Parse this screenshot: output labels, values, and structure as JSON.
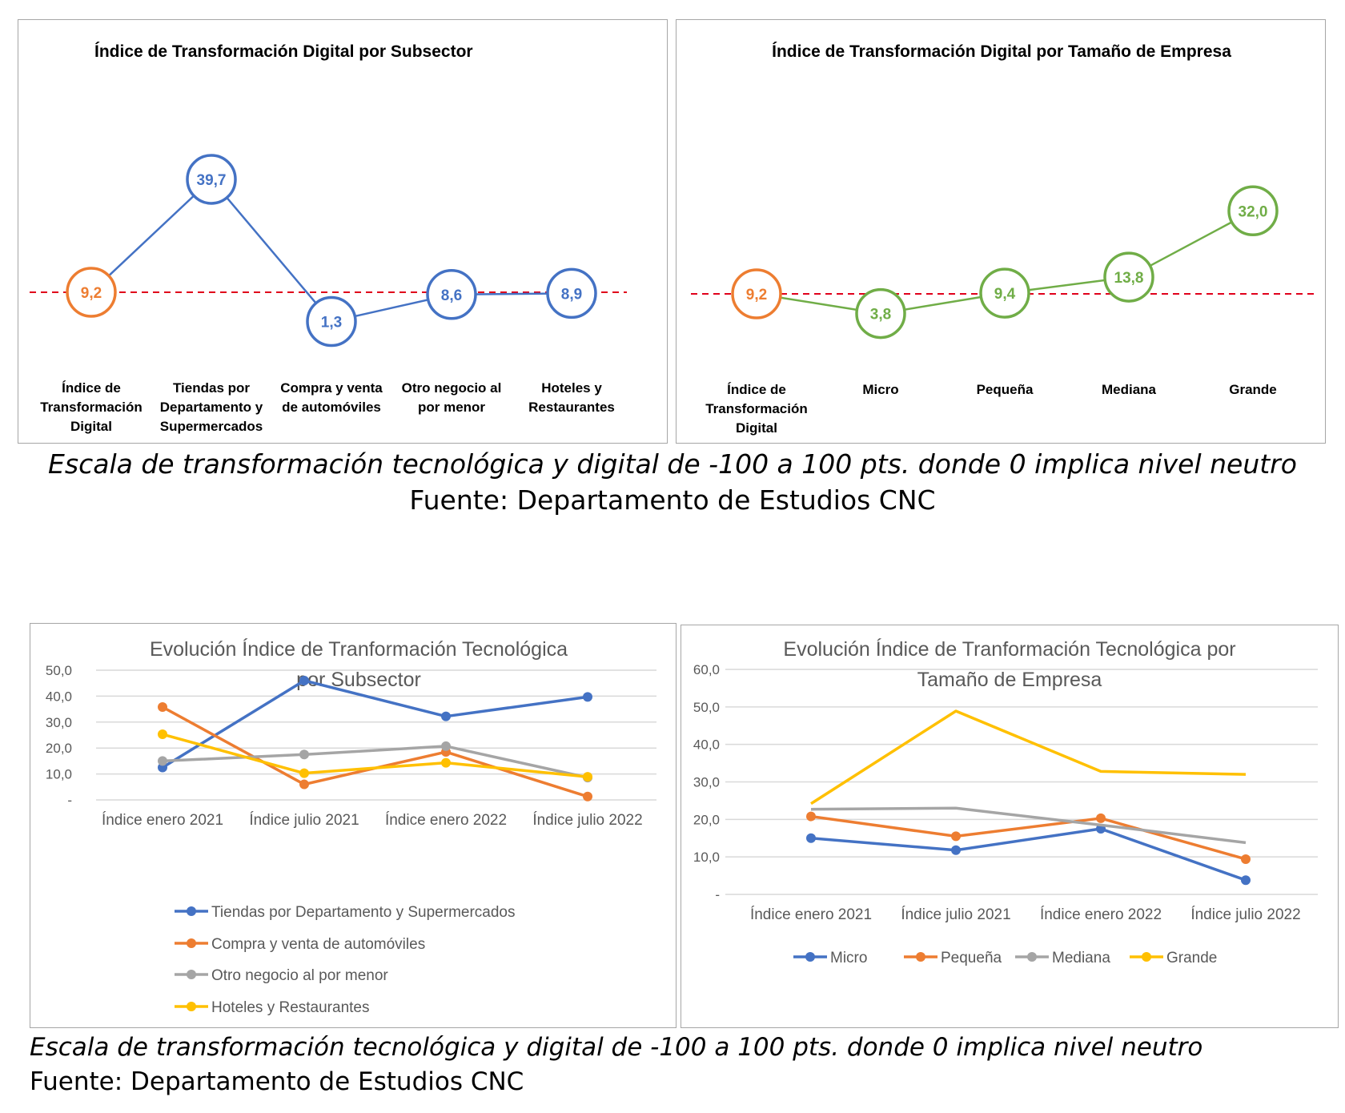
{
  "footnotes": {
    "top_scale": "Escala de transformación tecnológica y digital de -100 a 100 pts. donde 0 implica nivel neutro",
    "top_source": "Fuente: Departamento de Estudios CNC",
    "bottom_scale": "Escala de transformación tecnológica y digital de -100 a 100 pts. donde 0 implica nivel neutro",
    "bottom_source": "Fuente: Departamento de Estudios CNC"
  },
  "colors": {
    "blue": "#4472C4",
    "orange": "#ED7D31",
    "gray": "#A5A5A5",
    "yellow": "#FFC000",
    "green": "#70AD47",
    "ref_line": "#E0001B",
    "grid": "#D9D9D9",
    "axis_text": "#595959"
  },
  "chart_data": [
    {
      "type": "line",
      "title": "Índice de Transformación Digital por Subsector",
      "categories": [
        "Índice de Transformación Digital",
        "Tiendas por Departamento y Supermercados",
        "Compra y venta de automóviles",
        "Otro negocio al por menor",
        "Hoteles y Restaurantes"
      ],
      "category_lines": [
        [
          "Índice de",
          "Transformación",
          "Digital"
        ],
        [
          "Tiendas por",
          "Departamento y",
          "Supermercados"
        ],
        [
          "Compra y venta",
          "de automóviles"
        ],
        [
          "Otro negocio al",
          "por menor"
        ],
        [
          "Hoteles y",
          "Restaurantes"
        ]
      ],
      "values": [
        9.2,
        39.7,
        1.3,
        8.6,
        8.9
      ],
      "labels": [
        "9,2",
        "39,7",
        "1,3",
        "8,6",
        "8,9"
      ],
      "reference_value": 9.2,
      "marker_colors": [
        "#ED7D31",
        "#4472C4",
        "#4472C4",
        "#4472C4",
        "#4472C4"
      ],
      "line_color": "#4472C4"
    },
    {
      "type": "line",
      "title": "Índice de Transformación Digital por Tamaño de Empresa",
      "categories": [
        "Índice de Transformación Digital",
        "Micro",
        "Pequeña",
        "Mediana",
        "Grande"
      ],
      "category_lines": [
        [
          "Índice de",
          "Transformación",
          "Digital"
        ],
        [
          "Micro"
        ],
        [
          "Pequeña"
        ],
        [
          "Mediana"
        ],
        [
          "Grande"
        ]
      ],
      "values": [
        9.2,
        3.8,
        9.4,
        13.8,
        32.0
      ],
      "labels": [
        "9,2",
        "3,8",
        "9,4",
        "13,8",
        "32,0"
      ],
      "reference_value": 9.2,
      "marker_colors": [
        "#ED7D31",
        "#70AD47",
        "#70AD47",
        "#70AD47",
        "#70AD47"
      ],
      "line_color": "#70AD47"
    },
    {
      "type": "line",
      "title_lines": [
        "Evolución Índice de Tranformación Tecnológica",
        "por Subsector"
      ],
      "categories": [
        "Índice enero 2021",
        "Índice julio 2021",
        "Índice enero 2022",
        "Índice julio 2022"
      ],
      "ylim": [
        0,
        50
      ],
      "yticks": [
        0,
        10,
        20,
        30,
        40,
        50
      ],
      "ytick_labels": [
        "-",
        "10,0",
        "20,0",
        "30,0",
        "40,0",
        "50,0"
      ],
      "grid": true,
      "legend_position": "bottom",
      "markers": true,
      "series": [
        {
          "name": "Tiendas por Departamento y Supermercados",
          "color": "#4472C4",
          "values": [
            12.5,
            46.0,
            32.2,
            39.7
          ]
        },
        {
          "name": "Compra y venta de automóviles",
          "color": "#ED7D31",
          "values": [
            35.8,
            6.0,
            18.5,
            1.3
          ]
        },
        {
          "name": "Otro negocio al por menor",
          "color": "#A5A5A5",
          "values": [
            15.0,
            17.5,
            20.7,
            8.6
          ]
        },
        {
          "name": "Hoteles y Restaurantes",
          "color": "#FFC000",
          "values": [
            25.3,
            10.3,
            14.3,
            8.9
          ]
        }
      ]
    },
    {
      "type": "line",
      "title_lines": [
        "Evolución Índice de Tranformación Tecnológica por",
        "Tamaño de Empresa"
      ],
      "categories": [
        "Índice enero 2021",
        "Índice julio 2021",
        "Índice enero 2022",
        "Índice julio 2022"
      ],
      "ylim": [
        0,
        60
      ],
      "yticks": [
        0,
        10,
        20,
        30,
        40,
        50,
        60
      ],
      "ytick_labels": [
        "-",
        "10,0",
        "20,0",
        "30,0",
        "40,0",
        "50,0",
        "60,0"
      ],
      "grid": true,
      "legend_position": "bottom",
      "series": [
        {
          "name": "Micro",
          "color": "#4472C4",
          "markers": true,
          "values": [
            15.0,
            11.8,
            17.5,
            3.8
          ]
        },
        {
          "name": "Pequeña",
          "color": "#ED7D31",
          "markers": true,
          "values": [
            20.8,
            15.5,
            20.3,
            9.4
          ]
        },
        {
          "name": "Mediana",
          "color": "#A5A5A5",
          "markers": false,
          "values": [
            22.7,
            23.0,
            18.5,
            13.8
          ]
        },
        {
          "name": "Grande",
          "color": "#FFC000",
          "markers": false,
          "values": [
            24.2,
            48.9,
            32.8,
            32.0
          ]
        }
      ]
    }
  ]
}
